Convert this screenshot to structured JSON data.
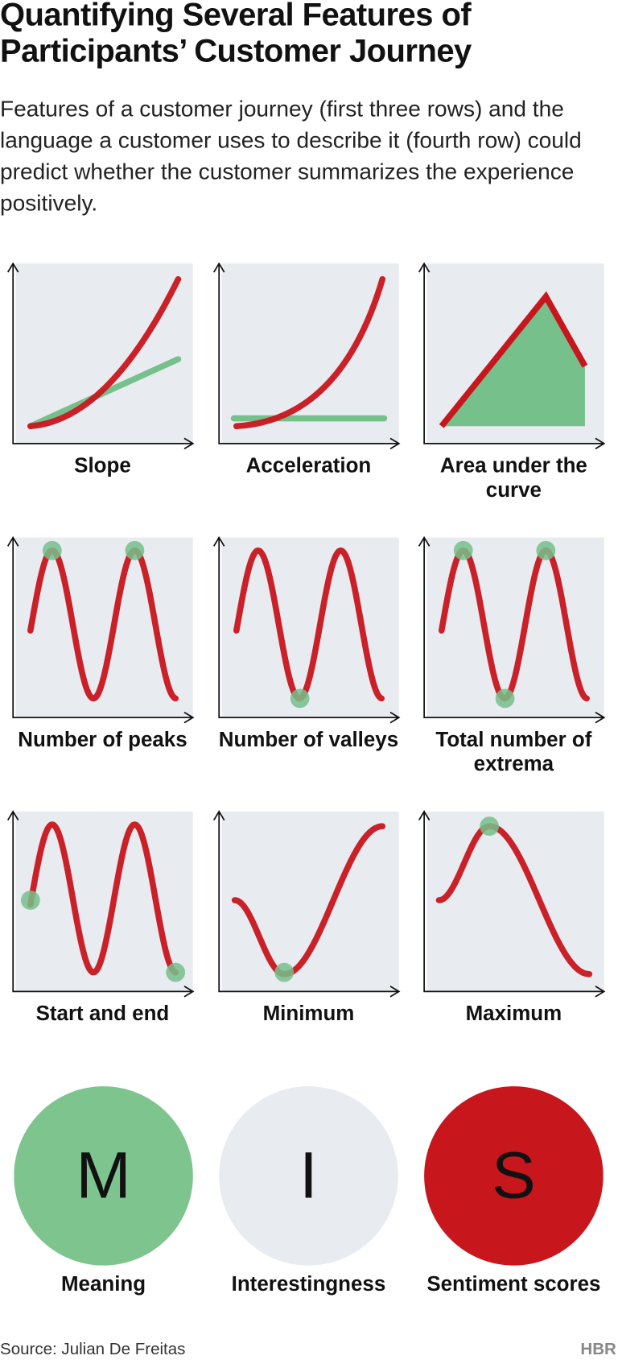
{
  "header": {
    "title": "Quantifying Several Features of Participants’ Customer Journey",
    "subtitle": "Features of a customer journey (first three rows) and the language a customer uses to describe it (fourth row) could predict whether the customer summarizes the experience positively."
  },
  "panels": [
    {
      "label": "Slope"
    },
    {
      "label": "Acceleration"
    },
    {
      "label": "Area under the curve"
    },
    {
      "label": "Number of peaks"
    },
    {
      "label": "Number of valleys"
    },
    {
      "label": "Total number of extrema"
    },
    {
      "label": "Start and end"
    },
    {
      "label": "Minimum"
    },
    {
      "label": "Maximum"
    }
  ],
  "circles": [
    {
      "letter": "M",
      "label": "Meaning"
    },
    {
      "letter": "I",
      "label": "Interestingness"
    },
    {
      "letter": "S",
      "label": "Sentiment scores"
    }
  ],
  "footer": {
    "source": "Source: Julian De Freitas",
    "logo": "HBR"
  }
}
